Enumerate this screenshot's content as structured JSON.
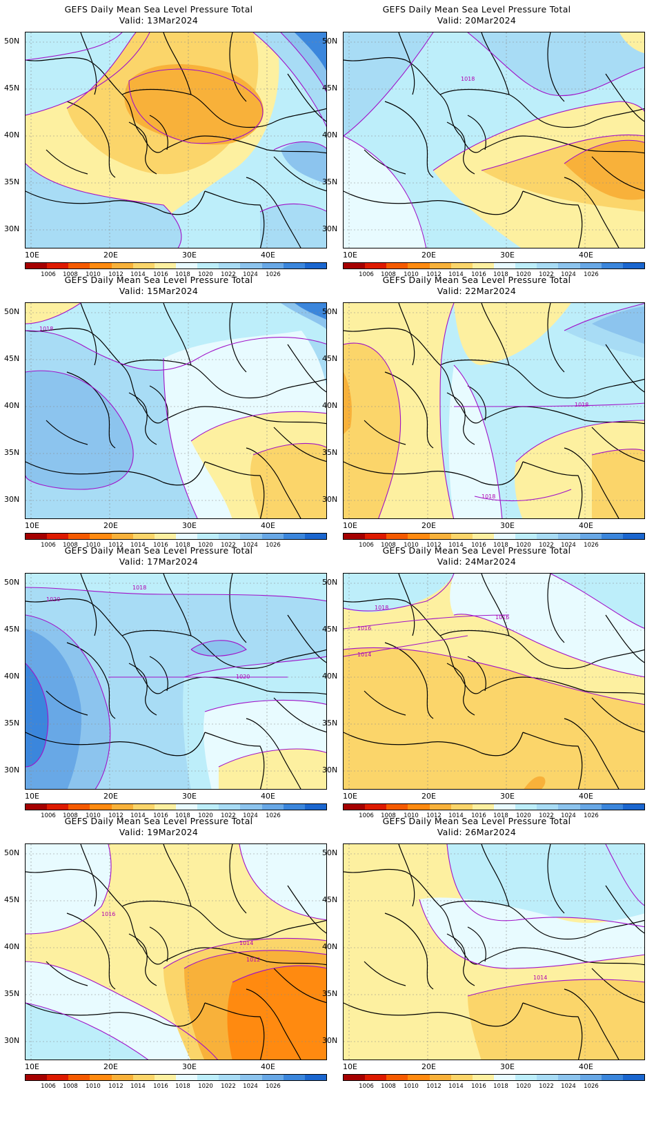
{
  "panels": [
    {
      "title": "GEFS Daily Mean Sea Level Pressure Total",
      "valid": "Valid:  13Mar2024",
      "scheme": "p13"
    },
    {
      "title": "GEFS Daily Mean Sea Level Pressure Total",
      "valid": "Valid:  20Mar2024",
      "scheme": "p20"
    },
    {
      "title": "GEFS Daily Mean Sea Level Pressure Total",
      "valid": "Valid:  15Mar2024",
      "scheme": "p15"
    },
    {
      "title": "GEFS Daily Mean Sea Level Pressure Total",
      "valid": "Valid:  22Mar2024",
      "scheme": "p22"
    },
    {
      "title": "GEFS Daily Mean Sea Level Pressure Total",
      "valid": "Valid:  17Mar2024",
      "scheme": "p17"
    },
    {
      "title": "GEFS Daily Mean Sea Level Pressure Total",
      "valid": "Valid:  24Mar2024",
      "scheme": "p24"
    },
    {
      "title": "GEFS Daily Mean Sea Level Pressure Total",
      "valid": "Valid:  19Mar2024",
      "scheme": "p19"
    },
    {
      "title": "GEFS Daily Mean Sea Level Pressure Total",
      "valid": "Valid:  26Mar2024",
      "scheme": "p26"
    }
  ],
  "lat_labels": [
    "50N",
    "45N",
    "40N",
    "35N",
    "30N"
  ],
  "lon_labels": [
    "10E",
    "20E",
    "30E",
    "40E"
  ],
  "colorbar": {
    "colors": [
      "#a50000",
      "#dd1a00",
      "#f55a00",
      "#ff8a10",
      "#f8b13a",
      "#fbd56a",
      "#fdf0a0",
      "#e8fbff",
      "#bdeefa",
      "#a8dcf5",
      "#8cc4ee",
      "#68a8e6",
      "#3b86dc",
      "#1a66cf"
    ],
    "labels": [
      "1006",
      "1008",
      "1010",
      "1012",
      "1014",
      "1016",
      "1018",
      "1020",
      "1022",
      "1024",
      "1026"
    ]
  },
  "contour_labels": {
    "p20": [
      "1018"
    ],
    "p15": [
      "1018"
    ],
    "p22": [
      "1018",
      "1018"
    ],
    "p17": [
      "1018",
      "1020",
      "1020"
    ],
    "p24": [
      "1018",
      "1016",
      "1016",
      "1014"
    ],
    "p19": [
      "1016",
      "1014",
      "1012"
    ],
    "p26": [
      "1014"
    ]
  }
}
